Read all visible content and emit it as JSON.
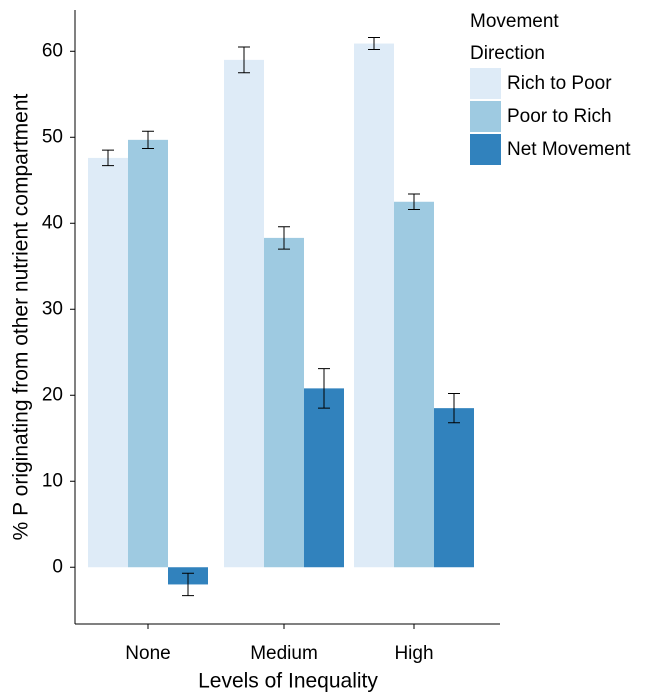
{
  "chart_data": {
    "type": "bar",
    "x_label": "Levels of Inequality",
    "y_label": "% P originating from other nutrient compartment",
    "legend_title": [
      "Movement",
      "Direction"
    ],
    "legend_position": "right",
    "categories": [
      "None",
      "Medium",
      "High"
    ],
    "series": [
      {
        "name": "Rich to Poor",
        "color": "#deebf7",
        "values": [
          47.6,
          59.0,
          60.9
        ],
        "errors": [
          0.9,
          1.5,
          0.7
        ]
      },
      {
        "name": "Poor to Rich",
        "color": "#9ecae1",
        "values": [
          49.7,
          38.3,
          42.5
        ],
        "errors": [
          1.0,
          1.3,
          0.9
        ]
      },
      {
        "name": "Net Movement",
        "color": "#3182bd",
        "values": [
          -2.0,
          20.8,
          18.5
        ],
        "errors": [
          1.3,
          2.3,
          1.7
        ]
      }
    ],
    "ylim": [
      -6.6,
      64.8
    ],
    "yticks": [
      0,
      10,
      20,
      30,
      40,
      50,
      60
    ],
    "grid": false
  }
}
